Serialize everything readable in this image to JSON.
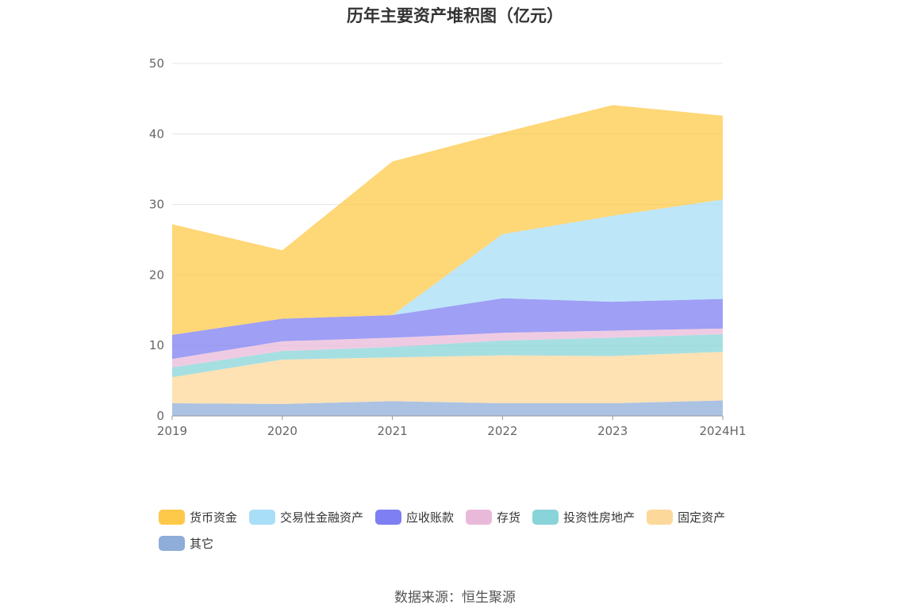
{
  "chart_data": {
    "type": "area",
    "title": "历年主要资产堆积图（亿元）",
    "x": [
      "2019",
      "2020",
      "2021",
      "2022",
      "2023",
      "2024H1"
    ],
    "ylim": [
      0,
      50
    ],
    "yticks": [
      0,
      10,
      20,
      30,
      40,
      50
    ],
    "grid": true,
    "stacked": true,
    "legend_position": "bottom",
    "series": [
      {
        "name": "其它",
        "color": "#8fadd9",
        "values": [
          1.8,
          1.7,
          2.1,
          1.8,
          1.8,
          2.2
        ]
      },
      {
        "name": "固定资产",
        "color": "#fdd89b",
        "values": [
          3.7,
          6.3,
          6.2,
          6.8,
          6.7,
          6.9
        ]
      },
      {
        "name": "投资性房地产",
        "color": "#88d4d8",
        "values": [
          1.4,
          1.2,
          1.5,
          2.1,
          2.6,
          2.5
        ]
      },
      {
        "name": "存货",
        "color": "#e9b9d9",
        "values": [
          1.2,
          1.4,
          1.3,
          1.1,
          1.0,
          0.8
        ]
      },
      {
        "name": "应收账款",
        "color": "#7d7ff2",
        "values": [
          3.4,
          3.2,
          3.2,
          4.9,
          4.1,
          4.2
        ]
      },
      {
        "name": "交易性金融资产",
        "color": "#a8def7",
        "values": [
          0.0,
          0.0,
          0.0,
          9.1,
          12.2,
          14.1
        ]
      },
      {
        "name": "货币资金",
        "color": "#fec948",
        "values": [
          15.7,
          9.7,
          21.8,
          14.4,
          15.7,
          11.9
        ]
      }
    ]
  },
  "legend_order": [
    "货币资金",
    "交易性金融资产",
    "应收账款",
    "存货",
    "投资性房地产",
    "固定资产",
    "其它"
  ],
  "source": "数据来源：恒生聚源"
}
